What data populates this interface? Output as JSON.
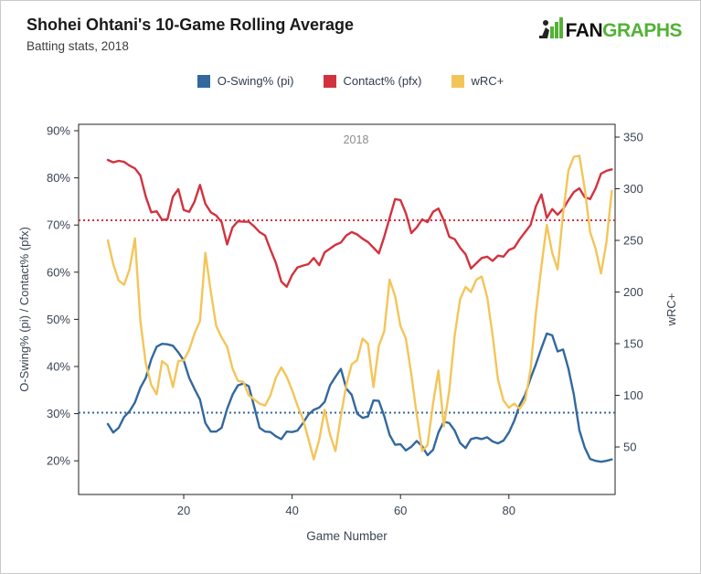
{
  "header": {
    "title": "Shohei Ohtani's 10-Game Rolling Average",
    "subtitle": "Batting stats, 2018"
  },
  "logo": {
    "fan": "FAN",
    "graphs": "GRAPHS",
    "green": "#53b235"
  },
  "legend": [
    {
      "label": "O-Swing% (pi)",
      "color": "#33689e"
    },
    {
      "label": "Contact% (pfx)",
      "color": "#d2323e"
    },
    {
      "label": "wRC+",
      "color": "#f3c559"
    }
  ],
  "chart_data": {
    "type": "line",
    "title": "Shohei Ohtani's 10-Game Rolling Average",
    "subtitle": "Batting stats, 2018",
    "annotation": "2018",
    "xlabel": "Game Number",
    "ylabel_left": "O-Swing% (pi) / Contact% (pfx)",
    "ylabel_right": "wRC+",
    "x_ticks": [
      20,
      40,
      60,
      80
    ],
    "y_left_ticks": [
      90,
      80,
      70,
      60,
      50,
      40,
      30,
      20
    ],
    "y_left_tick_suffix": "%",
    "y_right_ticks": [
      350,
      300,
      250,
      200,
      150,
      100,
      50
    ],
    "xlim": [
      0.6,
      99.6
    ],
    "ylim_left": [
      12.86,
      91.36
    ],
    "ylim_right": [
      4.0,
      362.4
    ],
    "grid": false,
    "legend_position": "top-center",
    "avg_lines": [
      {
        "series": "Contact% (pfx)",
        "axis": "left",
        "value": 71.0,
        "color": "#d2323e"
      },
      {
        "series": "O-Swing% (pi)",
        "axis": "left",
        "value": 30.2,
        "color": "#33689e"
      }
    ],
    "games": [
      6,
      7,
      8,
      9,
      10,
      11,
      12,
      13,
      14,
      15,
      16,
      17,
      18,
      19,
      20,
      21,
      22,
      23,
      24,
      25,
      26,
      27,
      28,
      29,
      30,
      31,
      32,
      33,
      34,
      35,
      36,
      37,
      38,
      39,
      40,
      41,
      42,
      43,
      44,
      45,
      46,
      47,
      48,
      49,
      50,
      51,
      52,
      53,
      54,
      55,
      56,
      57,
      58,
      59,
      60,
      61,
      62,
      63,
      64,
      65,
      66,
      67,
      68,
      69,
      70,
      71,
      72,
      73,
      74,
      75,
      76,
      77,
      78,
      79,
      80,
      81,
      82,
      83,
      84,
      85,
      86,
      87,
      88,
      89,
      90,
      91,
      92,
      93,
      94,
      95,
      96,
      97,
      98,
      99
    ],
    "series": [
      {
        "name": "O-Swing% (pi)",
        "axis": "left",
        "color": "#33689e",
        "values": [
          27.8,
          26.0,
          27.0,
          29.3,
          30.5,
          32.4,
          35.5,
          37.6,
          41.5,
          44.2,
          44.8,
          44.7,
          44.4,
          43.0,
          41.3,
          37.6,
          35.2,
          33.0,
          28.0,
          26.2,
          26.2,
          27.0,
          31.0,
          34.0,
          36.0,
          36.4,
          35.8,
          31.5,
          27.0,
          26.2,
          26.1,
          25.2,
          24.6,
          26.2,
          26.1,
          26.4,
          28.0,
          29.8,
          30.8,
          31.3,
          32.5,
          36.0,
          37.8,
          39.5,
          35.3,
          34.0,
          30.0,
          29.1,
          29.4,
          32.8,
          32.7,
          29.5,
          25.5,
          23.4,
          23.5,
          22.2,
          23.0,
          24.2,
          23.1,
          21.2,
          22.3,
          26.0,
          28.3,
          28.0,
          26.4,
          23.8,
          22.7,
          24.6,
          24.9,
          24.6,
          25.0,
          24.1,
          23.7,
          24.3,
          26.0,
          28.5,
          31.8,
          34.0,
          37.5,
          40.5,
          43.9,
          47.0,
          46.6,
          43.2,
          43.6,
          39.5,
          34.0,
          26.5,
          22.8,
          20.4,
          20.0,
          19.8,
          20.0,
          20.3
        ]
      },
      {
        "name": "Contact% (pfx)",
        "axis": "left",
        "color": "#d2323e",
        "values": [
          83.8,
          83.3,
          83.6,
          83.4,
          82.6,
          82.0,
          80.5,
          76.0,
          72.7,
          72.9,
          71.1,
          71.2,
          76.0,
          77.6,
          73.2,
          72.8,
          75.0,
          78.5,
          74.5,
          72.7,
          72.0,
          70.6,
          65.9,
          69.5,
          70.8,
          70.7,
          70.7,
          69.7,
          68.5,
          67.8,
          64.8,
          62.0,
          58.0,
          56.9,
          59.4,
          61.0,
          61.4,
          61.7,
          63.0,
          61.5,
          64.2,
          65.0,
          65.8,
          66.3,
          67.8,
          68.5,
          68.0,
          67.1,
          66.4,
          65.2,
          64.0,
          67.5,
          71.5,
          75.5,
          75.3,
          72.5,
          68.3,
          69.5,
          71.2,
          70.6,
          72.8,
          73.5,
          71.0,
          67.5,
          67.0,
          65.2,
          63.8,
          60.8,
          61.9,
          63.0,
          63.3,
          62.4,
          63.5,
          63.3,
          64.7,
          65.2,
          67.0,
          68.5,
          70.0,
          74.0,
          76.5,
          71.5,
          73.4,
          72.2,
          73.4,
          75.3,
          77.0,
          77.8,
          75.9,
          75.5,
          77.8,
          80.9,
          81.5,
          81.8
        ]
      },
      {
        "name": "wRC+",
        "axis": "right",
        "color": "#f3c559",
        "values": [
          250,
          227,
          211,
          207,
          222,
          252,
          172,
          131,
          110,
          101,
          133,
          129,
          108,
          133,
          134,
          144,
          160,
          172,
          238,
          200,
          167,
          156,
          147,
          126,
          114,
          113,
          100,
          96,
          92,
          90,
          100,
          117,
          127,
          118,
          105,
          90,
          77,
          58,
          38,
          57,
          86,
          62,
          46,
          80,
          110,
          130,
          134,
          155,
          150,
          108,
          148,
          162,
          212,
          196,
          167,
          155,
          120,
          81,
          46,
          52,
          92,
          124,
          70,
          105,
          158,
          193,
          205,
          200,
          212,
          215,
          195,
          158,
          115,
          95,
          88,
          92,
          87,
          95,
          125,
          180,
          225,
          265,
          238,
          222,
          276,
          318,
          331,
          332,
          300,
          258,
          242,
          218,
          248,
          298
        ]
      }
    ]
  }
}
